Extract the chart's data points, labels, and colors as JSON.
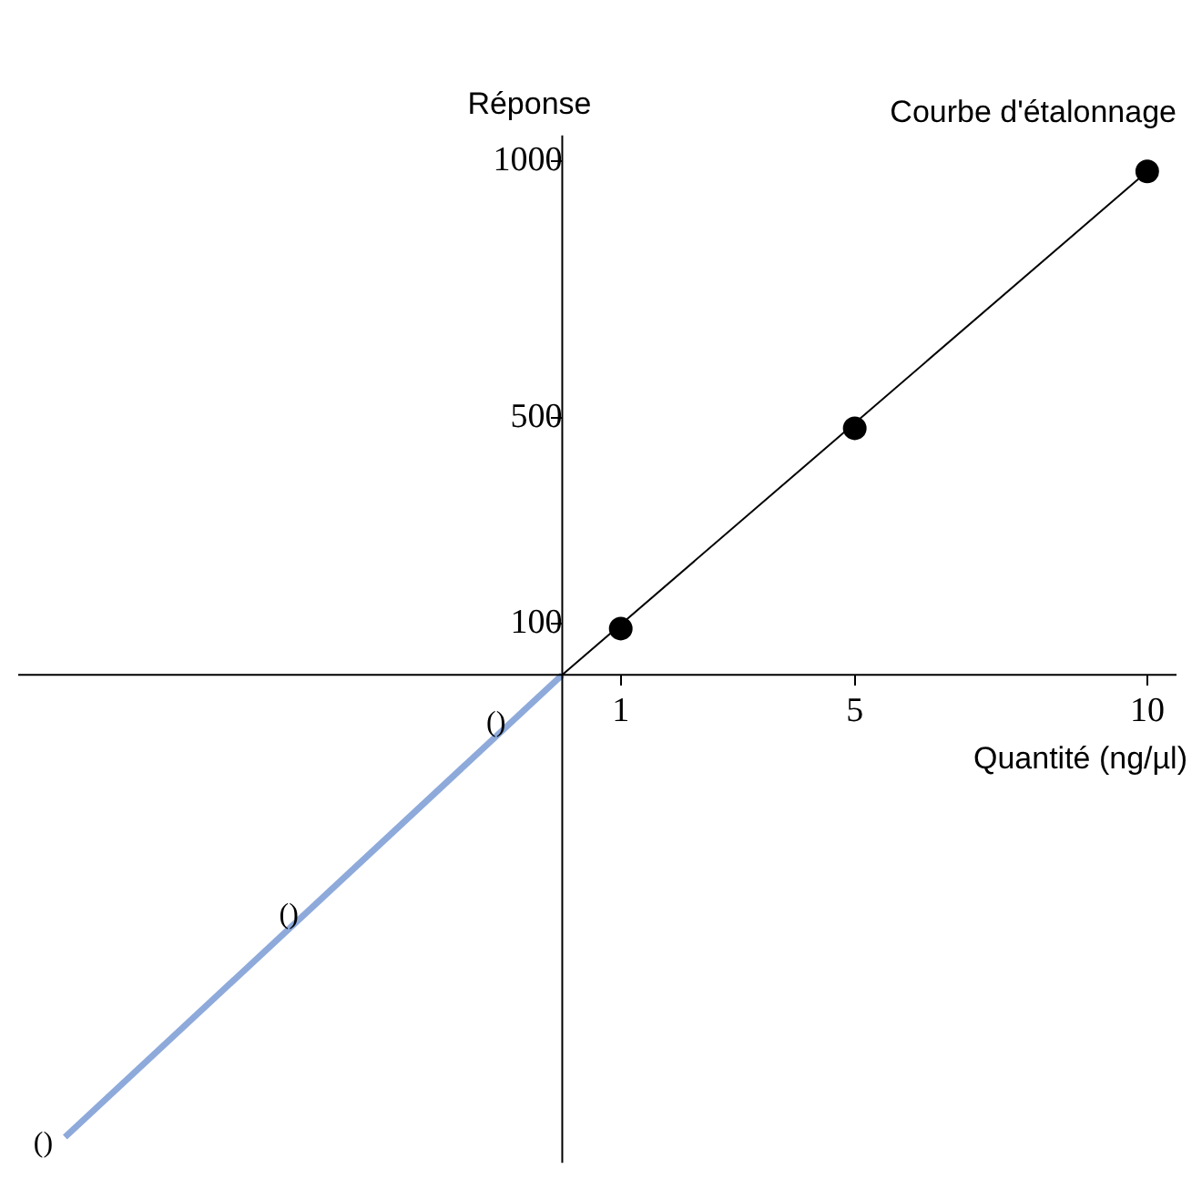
{
  "chart_data": {
    "type": "scatter",
    "title": "Courbe d'étalonnage",
    "xlabel": "Quantité (ng/µl)",
    "ylabel": "Réponse",
    "xlim": [
      -9.3,
      10.5
    ],
    "ylim": [
      -950,
      1050
    ],
    "xticks": [
      1,
      5,
      10
    ],
    "yticks": [
      100,
      500,
      1000
    ],
    "series": [
      {
        "type": "line",
        "color": "#000000",
        "marker": "none",
        "x": [
          0,
          10
        ],
        "values": [
          0,
          980
        ]
      },
      {
        "type": "line",
        "color": "#8eaadb",
        "marker": "none",
        "x": [
          -8.5,
          0
        ],
        "values": [
          -900,
          0
        ]
      },
      {
        "type": "scatter",
        "color": "#000000",
        "marker": "circle",
        "x": [
          1,
          5,
          10
        ],
        "values": [
          90,
          480,
          980
        ]
      }
    ],
    "annotations": [
      {
        "text": "()",
        "x": -0.76,
        "y": -80
      },
      {
        "text": "()",
        "x": -4.3,
        "y": -455
      },
      {
        "text": "()",
        "x": -8.5,
        "y": -900
      }
    ]
  }
}
